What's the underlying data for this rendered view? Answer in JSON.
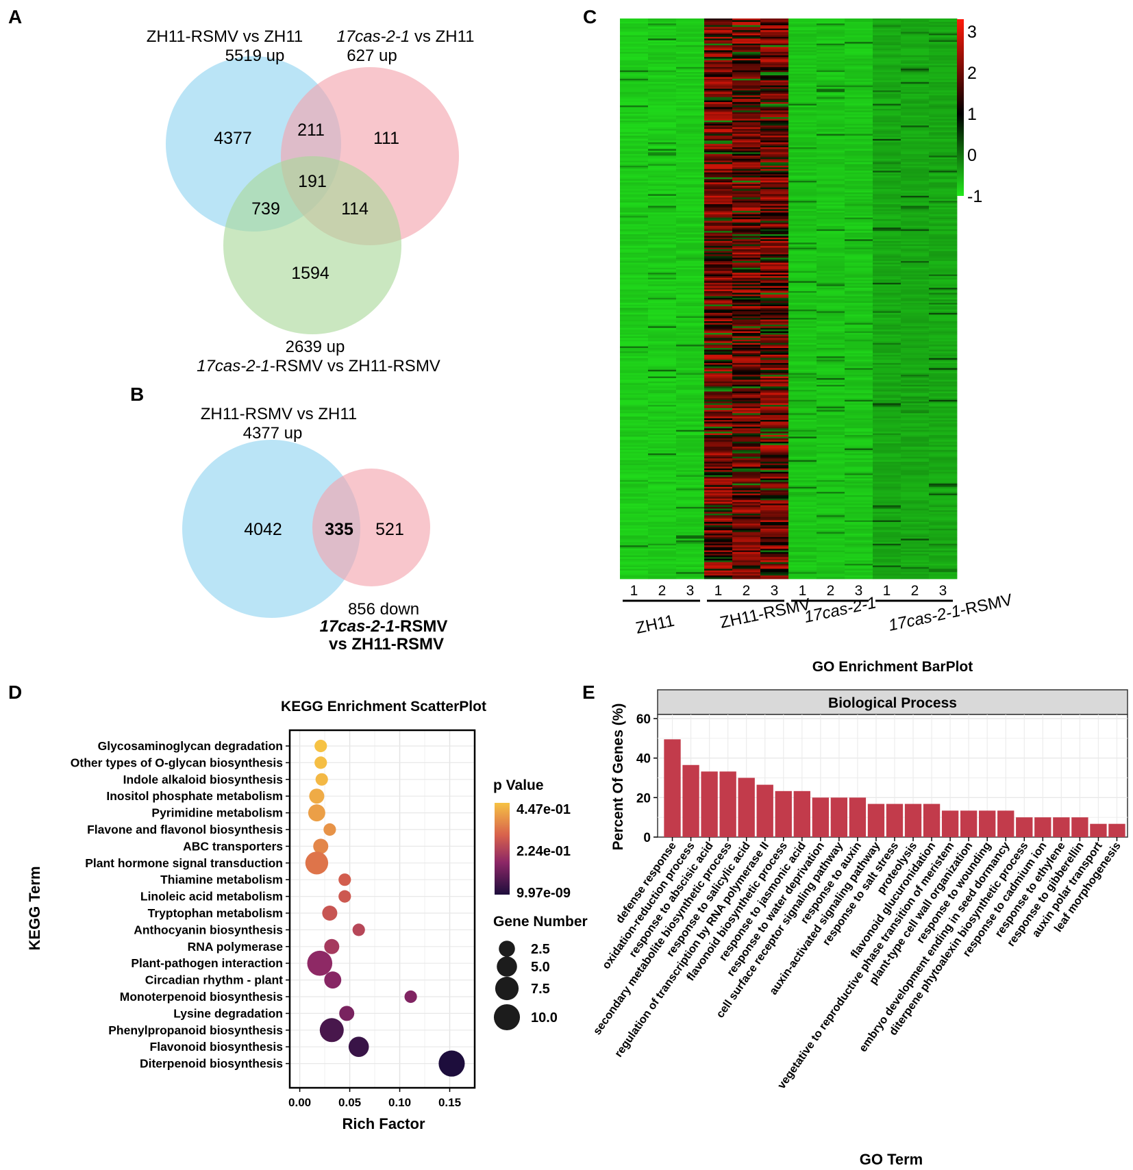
{
  "panels": {
    "A": "A",
    "B": "B",
    "C": "C",
    "D": "D",
    "E": "E"
  },
  "colors": {
    "venn_blue": "#8fd3f0",
    "venn_pink": "#f3a3ac",
    "venn_green": "#a9d99a",
    "highlight_red": "#e8131b",
    "bar_fill": "#c23b4b",
    "heat_low": "#22e81c",
    "heat_mid": "#000000",
    "heat_high": "#ff1a0a",
    "strip_bg": "#d9d9d9"
  },
  "chart_data": [
    {
      "type": "venn",
      "panel": "A",
      "sets": [
        {
          "name_parts": [
            {
              "text": "ZH11-RSMV vs ZH11",
              "italic": false
            }
          ],
          "count_label": "5519 up",
          "color": "#8fd3f0"
        },
        {
          "name_parts": [
            {
              "text": "17cas-2-1",
              "italic": true
            },
            {
              "text": " vs ZH11",
              "italic": false
            }
          ],
          "count_label": "627 up",
          "color": "#f3a3ac"
        },
        {
          "name_parts": [
            {
              "text": "17cas-2-1",
              "italic": true
            },
            {
              "text": "-RSMV vs ZH11-RSMV",
              "italic": false
            }
          ],
          "count_label": "2639 up",
          "color": "#a9d99a"
        }
      ],
      "regions": [
        {
          "sets": [
            "1"
          ],
          "value": "4377",
          "highlight": true
        },
        {
          "sets": [
            "1",
            "2"
          ],
          "value": "211",
          "highlight": false
        },
        {
          "sets": [
            "2"
          ],
          "value": "111",
          "highlight": false
        },
        {
          "sets": [
            "1",
            "2",
            "3"
          ],
          "value": "191",
          "highlight": false
        },
        {
          "sets": [
            "1",
            "3"
          ],
          "value": "739",
          "highlight": false
        },
        {
          "sets": [
            "2",
            "3"
          ],
          "value": "114",
          "highlight": false
        },
        {
          "sets": [
            "3"
          ],
          "value": "1594",
          "highlight": false
        }
      ]
    },
    {
      "type": "venn",
      "panel": "B",
      "sets": [
        {
          "name_parts": [
            {
              "text": "ZH11-RSMV vs ZH11",
              "italic": false
            }
          ],
          "count_label": "4377 up",
          "color": "#8fd3f0"
        },
        {
          "name_parts": [
            {
              "text": "17cas-2-1",
              "italic": true
            },
            {
              "text": "-RSMV",
              "italic": false
            }
          ],
          "name_line2": "vs ZH11-RSMV",
          "count_label": "856 down",
          "color": "#f3a3ac"
        }
      ],
      "regions": [
        {
          "sets": [
            "1"
          ],
          "value": "4042",
          "highlight": false
        },
        {
          "sets": [
            "1",
            "2"
          ],
          "value": "335",
          "highlight": true
        },
        {
          "sets": [
            "2"
          ],
          "value": "521",
          "highlight": false
        }
      ]
    },
    {
      "type": "heatmap",
      "panel": "C",
      "groups": [
        "ZH11",
        "ZH11-RSMV",
        "17cas-2-1",
        "17cas-2-1-RSMV"
      ],
      "group_label_italic_prefix": [
        "",
        "",
        "17cas-2-1",
        "17cas-2-1"
      ],
      "replicates": [
        "1",
        "2",
        "3"
      ],
      "colorbar_ticks": [
        3,
        2,
        1,
        0,
        -1
      ],
      "colorbar_range": [
        -1,
        3.3
      ],
      "n_genes": 335,
      "group_mean_scale": [
        -0.75,
        2.1,
        -0.7,
        -0.45
      ]
    },
    {
      "type": "scatter",
      "panel": "D",
      "title": "KEGG Enrichment ScatterPlot",
      "xlabel": "Rich Factor",
      "ylabel": "KEGG Term",
      "xlim": [
        -0.01,
        0.175
      ],
      "xticks": [
        0.0,
        0.05,
        0.1,
        0.15
      ],
      "xtick_labels": [
        "0.00",
        "0.05",
        "0.10",
        "0.15"
      ],
      "legend_color_title": "p Value",
      "legend_color_labels": [
        "4.47e-01",
        "2.24e-01",
        "9.97e-09"
      ],
      "legend_size_title": "Gene Number",
      "legend_sizes": [
        2.5,
        5.0,
        7.5,
        10.0
      ],
      "legend_size_labels": [
        "2.5",
        "5.0",
        "7.5",
        "10.0"
      ],
      "points": [
        {
          "term": "Glycosaminoglycan degradation",
          "x": 0.021,
          "genes": 1,
          "p": 0.447
        },
        {
          "term": "Other types of O-glycan biosynthesis",
          "x": 0.021,
          "genes": 1,
          "p": 0.44
        },
        {
          "term": "Indole alkaloid biosynthesis",
          "x": 0.022,
          "genes": 1,
          "p": 0.43
        },
        {
          "term": "Inositol phosphate metabolism",
          "x": 0.017,
          "genes": 2,
          "p": 0.41
        },
        {
          "term": "Pyrimidine metabolism",
          "x": 0.017,
          "genes": 3,
          "p": 0.39
        },
        {
          "term": "Flavone and flavonol biosynthesis",
          "x": 0.03,
          "genes": 1,
          "p": 0.37
        },
        {
          "term": "ABC transporters",
          "x": 0.021,
          "genes": 2,
          "p": 0.35
        },
        {
          "term": "Plant hormone signal transduction",
          "x": 0.017,
          "genes": 7,
          "p": 0.32
        },
        {
          "term": "Thiamine metabolism",
          "x": 0.045,
          "genes": 1,
          "p": 0.28
        },
        {
          "term": "Linoleic acid metabolism",
          "x": 0.045,
          "genes": 1,
          "p": 0.27
        },
        {
          "term": "Tryptophan metabolism",
          "x": 0.03,
          "genes": 2,
          "p": 0.26
        },
        {
          "term": "Anthocyanin biosynthesis",
          "x": 0.059,
          "genes": 1,
          "p": 0.23
        },
        {
          "term": "RNA polymerase",
          "x": 0.032,
          "genes": 2,
          "p": 0.2
        },
        {
          "term": "Plant-pathogen interaction",
          "x": 0.02,
          "genes": 9,
          "p": 0.16
        },
        {
          "term": "Circadian rhythm - plant",
          "x": 0.033,
          "genes": 3,
          "p": 0.15
        },
        {
          "term": "Monoterpenoid biosynthesis",
          "x": 0.111,
          "genes": 1,
          "p": 0.14
        },
        {
          "term": "Lysine degradation",
          "x": 0.047,
          "genes": 2,
          "p": 0.13
        },
        {
          "term": "Phenylpropanoid biosynthesis",
          "x": 0.032,
          "genes": 8,
          "p": 0.06
        },
        {
          "term": "Flavonoid biosynthesis",
          "x": 0.059,
          "genes": 5,
          "p": 0.04
        },
        {
          "term": "Diterpenoid biosynthesis",
          "x": 0.152,
          "genes": 10,
          "p": 0.0
        }
      ]
    },
    {
      "type": "bar",
      "panel": "E",
      "title": "GO Enrichment BarPlot",
      "facet": "Biological Process",
      "xlabel": "GO Term",
      "ylabel": "Percent Of Genes (%)",
      "ylim": [
        0,
        60
      ],
      "yticks": [
        0,
        20,
        40,
        60
      ],
      "categories": [
        "defense response",
        "oxidation-reduction process",
        "response to abscisic acid",
        "secondary metabolite biosynthetic process",
        "response to salicylic acid",
        "regulation of transcription by RNA polymerase II",
        "flavonoid biosynthetic process",
        "response to jasmonic acid",
        "response to water deprivation",
        "cell surface receptor signaling pathway",
        "response to auxin",
        "auxin-activated signaling pathway",
        "response to salt stress",
        "proteolysis",
        "flavonoid glucuronidation",
        "vegetative to reproductive phase transition of meristem",
        "plant-type cell wall organization",
        "response to wounding",
        "embryo development ending in seed dormancy",
        "diterpene phytoalexin biosynthetic process",
        "response to cadmium ion",
        "response to ethylene",
        "response to gibberellin",
        "auxin polar transport",
        "leaf morphogenesis"
      ],
      "values": [
        49.5,
        36.5,
        33.2,
        33.2,
        30.0,
        26.5,
        23.3,
        23.3,
        20.0,
        20.0,
        20.0,
        16.8,
        16.8,
        16.8,
        16.8,
        13.4,
        13.4,
        13.4,
        13.4,
        10.0,
        10.0,
        10.0,
        10.0,
        6.7,
        6.7
      ]
    }
  ]
}
